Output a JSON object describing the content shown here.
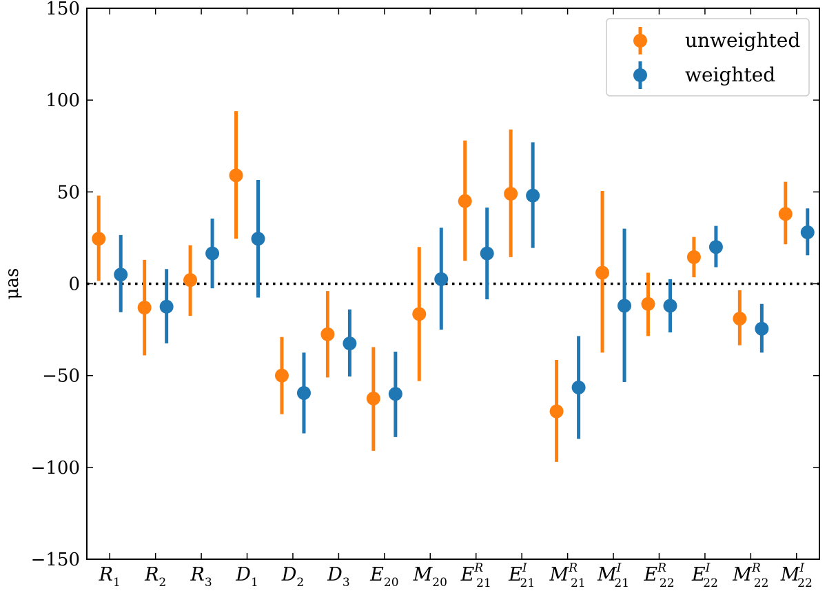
{
  "chart_data": {
    "type": "scatter",
    "title": "",
    "xlabel": "",
    "ylabel": "μas",
    "ylim": [
      -150,
      150
    ],
    "yticks": [
      -150,
      -100,
      -50,
      0,
      50,
      100,
      150
    ],
    "ytick_labels": [
      "−150",
      "−100",
      "−50",
      "0",
      "50",
      "100",
      "150"
    ],
    "reference_line": {
      "y": 0,
      "style": "dotted"
    },
    "categories": [
      {
        "base": "R",
        "sub": "1",
        "sup": ""
      },
      {
        "base": "R",
        "sub": "2",
        "sup": ""
      },
      {
        "base": "R",
        "sub": "3",
        "sup": ""
      },
      {
        "base": "D",
        "sub": "1",
        "sup": ""
      },
      {
        "base": "D",
        "sub": "2",
        "sup": ""
      },
      {
        "base": "D",
        "sub": "3",
        "sup": ""
      },
      {
        "base": "E",
        "sub": "20",
        "sup": ""
      },
      {
        "base": "M",
        "sub": "20",
        "sup": ""
      },
      {
        "base": "E",
        "sub": "21",
        "sup": "R"
      },
      {
        "base": "E",
        "sub": "21",
        "sup": "I"
      },
      {
        "base": "M",
        "sub": "21",
        "sup": "R"
      },
      {
        "base": "M",
        "sub": "21",
        "sup": "I"
      },
      {
        "base": "E",
        "sub": "22",
        "sup": "R"
      },
      {
        "base": "E",
        "sub": "22",
        "sup": "I"
      },
      {
        "base": "M",
        "sub": "22",
        "sup": "R"
      },
      {
        "base": "M",
        "sub": "22",
        "sup": "I"
      }
    ],
    "legend": {
      "position": "top-right"
    },
    "series": [
      {
        "name": "unweighted",
        "color": "#ff7f0e",
        "values": [
          24.5,
          -13,
          2,
          59,
          -50,
          -27.5,
          -62.5,
          -16.5,
          45,
          49,
          -69.5,
          6,
          -11,
          14.5,
          -19,
          38
        ],
        "err_low": [
          1.5,
          -39,
          -17.5,
          24.5,
          -71,
          -51,
          -91,
          -53,
          12.5,
          14.5,
          -97,
          -37.5,
          -28.5,
          3.5,
          -33.5,
          21.5
        ],
        "err_high": [
          48,
          13,
          21,
          94,
          -29,
          -4,
          -34.5,
          20,
          78,
          84,
          -41.5,
          50.5,
          6,
          25.5,
          -3.5,
          55.5
        ]
      },
      {
        "name": "weighted",
        "color": "#1f77b4",
        "values": [
          5,
          -12.5,
          16.5,
          24.5,
          -59.5,
          -32.5,
          -60,
          2.5,
          16.5,
          48,
          -56.5,
          -12,
          -12,
          20,
          -24.5,
          28
        ],
        "err_low": [
          -15.5,
          -32.5,
          -2.5,
          -7.5,
          -81.5,
          -50.5,
          -83.5,
          -25,
          -8.5,
          19.5,
          -84.5,
          -53.5,
          -26.5,
          9,
          -37.5,
          15.5
        ],
        "err_high": [
          26.5,
          8,
          35.5,
          56.5,
          -37.5,
          -14,
          -37,
          30.5,
          41.5,
          77,
          -28.5,
          30,
          2.5,
          31.5,
          -11,
          41
        ]
      }
    ]
  }
}
